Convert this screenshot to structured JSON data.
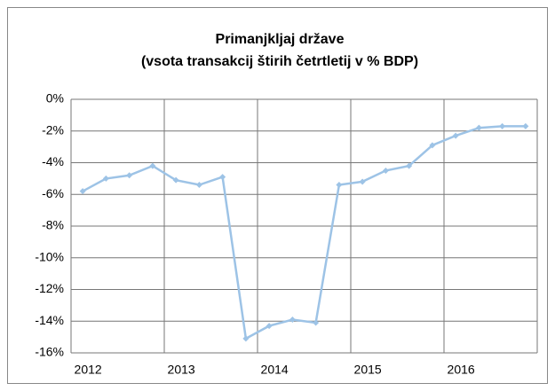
{
  "chart_data": {
    "type": "line",
    "title": "Primanjkljaj države",
    "subtitle": "(vsota transakcij štirih četrtletij v % BDP)",
    "categories": [
      "2012",
      null,
      null,
      null,
      "2013",
      null,
      null,
      null,
      "2014",
      null,
      null,
      null,
      "2015",
      null,
      null,
      null,
      "2016",
      null,
      null,
      null
    ],
    "series": [
      {
        "color": "#9dc3e6",
        "values": [
          -5.8,
          -5.0,
          -4.8,
          -4.2,
          -5.1,
          -5.4,
          -4.9,
          -15.1,
          -14.3,
          -13.9,
          -14.1,
          -5.4,
          -5.2,
          -4.5,
          -4.2,
          -2.9,
          -2.3,
          -1.8,
          -1.7,
          -1.7
        ]
      }
    ],
    "ylim": [
      -16,
      0
    ],
    "yticks": [
      {
        "value": 0,
        "label": "0%"
      },
      {
        "value": -2,
        "label": "-2%"
      },
      {
        "value": -4,
        "label": "-4%"
      },
      {
        "value": -6,
        "label": "-6%"
      },
      {
        "value": -8,
        "label": "-8%"
      },
      {
        "value": -10,
        "label": "-10%"
      },
      {
        "value": -12,
        "label": "-12%"
      },
      {
        "value": -14,
        "label": "-14%"
      },
      {
        "value": -16,
        "label": "-16%"
      }
    ],
    "grid": true
  }
}
